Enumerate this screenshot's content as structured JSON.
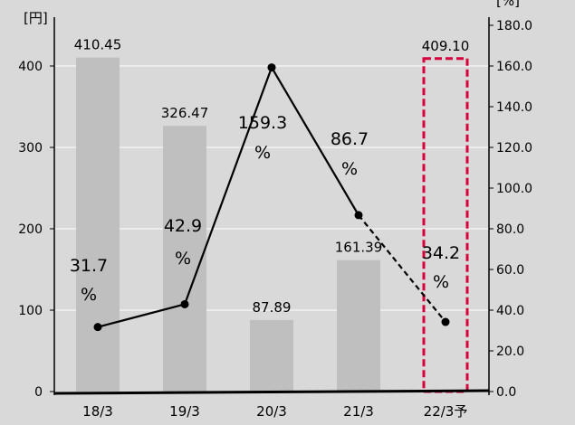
{
  "chart_data": {
    "type": "bar",
    "categories": [
      "18/3",
      "19/3",
      "20/3",
      "21/3",
      "22/3予"
    ],
    "series": [
      {
        "values": [
          410.45,
          326.47,
          87.89,
          161.39,
          409.1
        ],
        "labels": [
          "410.45",
          "326.47",
          "87.89",
          "161.39",
          "409.10"
        ],
        "axis": "left",
        "forecast_index": 4
      },
      {
        "type": "line",
        "values": [
          31.7,
          42.9,
          159.3,
          86.7,
          34.2
        ],
        "labels": [
          [
            "31.7",
            "%"
          ],
          [
            "42.9",
            "%"
          ],
          [
            "159.3",
            "%"
          ],
          [
            "86.7",
            "%"
          ],
          [
            "34.2",
            "%"
          ]
        ],
        "axis": "right",
        "dashed_last_segment": true
      }
    ],
    "y_left": {
      "unit": "[円]",
      "ticks": [
        "0",
        "100",
        "200",
        "300",
        "400"
      ],
      "ylim": [
        0,
        460
      ]
    },
    "y_right": {
      "unit": "[%]",
      "ticks": [
        "0.0",
        "20.0",
        "40.0",
        "60.0",
        "80.0",
        "100.0",
        "120.0",
        "140.0",
        "160.0",
        "180.0"
      ],
      "ylim": [
        0,
        184
      ]
    },
    "grid": true,
    "colors": {
      "bar": "#bfbfbf",
      "forecast_border": "#d6003a",
      "line": "#000000",
      "grid": "#ffffff",
      "background": "#d9d9d9"
    }
  }
}
